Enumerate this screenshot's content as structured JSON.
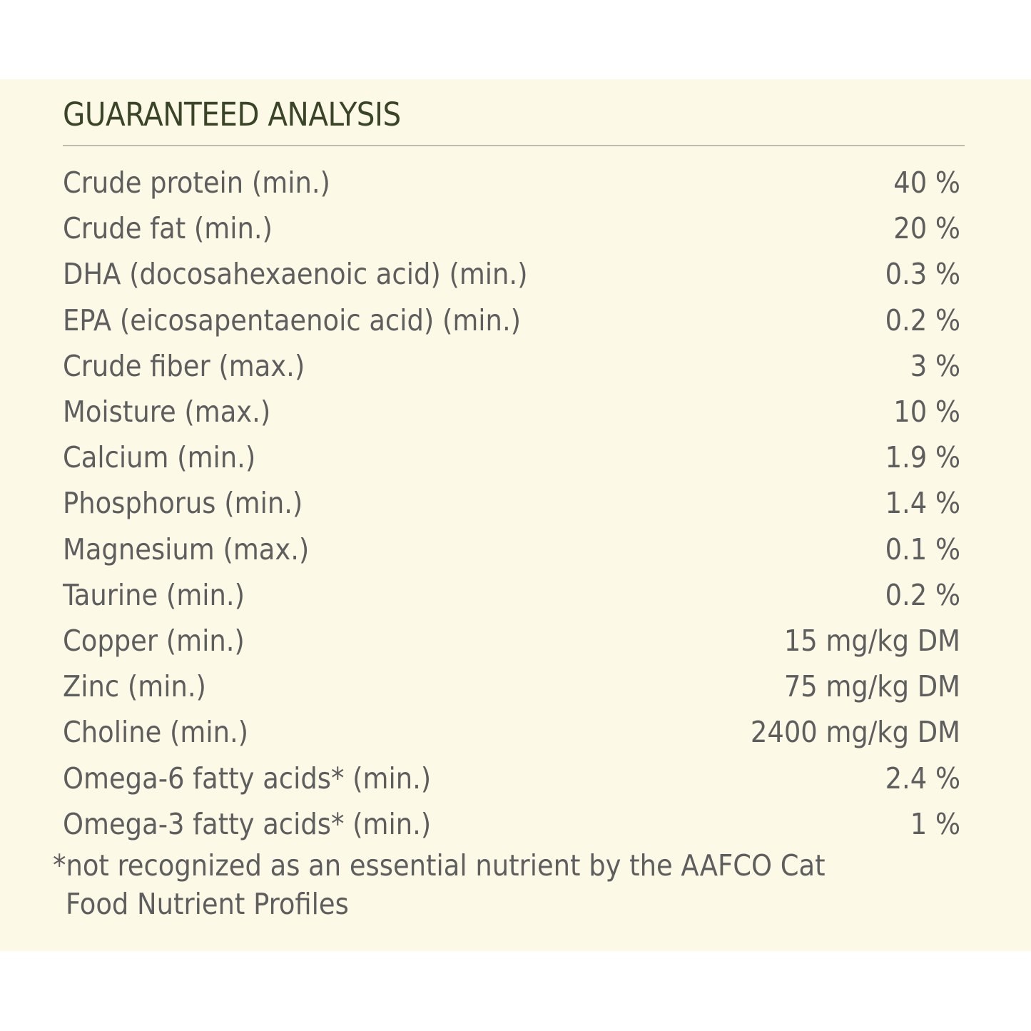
{
  "title": "GUARANTEED ANALYSIS",
  "rows": [
    {
      "label": "Crude protein (min.)",
      "value": "40 %"
    },
    {
      "label": "Crude fat (min.)",
      "value": "20 %"
    },
    {
      "label": "DHA (docosahexaenoic acid) (min.)",
      "value": "0.3 %"
    },
    {
      "label": "EPA (eicosapentaenoic acid) (min.)",
      "value": "0.2 %"
    },
    {
      "label": "Crude fiber (max.)",
      "value": "3 %"
    },
    {
      "label": "Moisture (max.)",
      "value": "10 %"
    },
    {
      "label": "Calcium (min.)",
      "value": "1.9 %"
    },
    {
      "label": "Phosphorus (min.)",
      "value": "1.4 %"
    },
    {
      "label": "Magnesium (max.)",
      "value": "0.1 %"
    },
    {
      "label": "Taurine (min.)",
      "value": "0.2 %"
    },
    {
      "label": "Copper (min.)",
      "value": "15 mg/kg DM"
    },
    {
      "label": "Zinc (min.)",
      "value": "75 mg/kg DM"
    },
    {
      "label": "Choline (min.)",
      "value": "2400 mg/kg DM"
    },
    {
      "label": "Omega-6 fatty acids* (min.)",
      "value": "2.4 %"
    },
    {
      "label": "Omega-3 fatty acids* (min.)",
      "value": "1 %"
    }
  ],
  "footnote": {
    "line1": "*not recognized as an essential nutrient by the AAFCO Cat",
    "line2": "Food Nutrient Profiles"
  }
}
